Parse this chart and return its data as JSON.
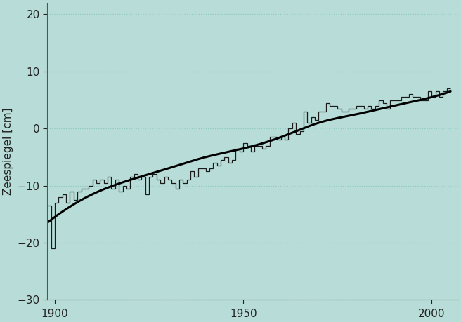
{
  "title": "",
  "ylabel": "Zeespiegel [cm]",
  "xlabel": "",
  "xlim": [
    1898,
    2007
  ],
  "ylim": [
    -30,
    22
  ],
  "yticks": [
    -30,
    -20,
    -10,
    0,
    10,
    20
  ],
  "xticks": [
    1900,
    1950,
    2000
  ],
  "background_color": "#b8ddd8",
  "plot_bg_color": "#b8ddd8",
  "grid_color": "#8ec9c0",
  "step_color": "#1a1a1a",
  "trend_color": "#000000",
  "trend_lw": 2.2,
  "step_lw": 0.9,
  "annual_values": [
    -13.5,
    -21.0,
    -13.0,
    -12.0,
    -11.5,
    -13.0,
    -11.0,
    -12.5,
    -11.0,
    -10.5,
    -10.5,
    -10.0,
    -9.0,
    -9.5,
    -9.0,
    -9.5,
    -8.5,
    -10.5,
    -9.0,
    -11.0,
    -10.0,
    -10.5,
    -8.5,
    -8.0,
    -9.0,
    -8.5,
    -11.5,
    -8.5,
    -8.0,
    -9.0,
    -9.5,
    -8.5,
    -9.0,
    -9.5,
    -10.5,
    -9.0,
    -9.5,
    -9.0,
    -7.5,
    -8.5,
    -7.0,
    -7.0,
    -7.5,
    -7.0,
    -6.0,
    -6.5,
    -5.5,
    -5.0,
    -6.0,
    -5.5,
    -3.5,
    -4.0,
    -2.5,
    -3.0,
    -4.0,
    -3.0,
    -3.0,
    -3.5,
    -3.0,
    -1.5,
    -1.5,
    -2.0,
    -1.5,
    -2.0,
    0.0,
    1.0,
    -1.0,
    -0.5,
    3.0,
    1.0,
    2.0,
    1.5,
    3.0,
    3.0,
    4.5,
    4.0,
    4.0,
    3.5,
    3.0,
    3.0,
    3.5,
    3.5,
    4.0,
    4.0,
    3.5,
    4.0,
    3.5,
    4.0,
    5.0,
    4.5,
    3.5,
    5.0,
    5.0,
    5.0,
    5.5,
    5.5,
    6.0,
    5.5,
    5.5,
    5.0,
    5.0,
    6.5,
    5.5,
    6.5,
    5.5,
    6.5,
    7.0
  ],
  "years_start": 1898,
  "trend_points_x": [
    1898,
    1900,
    1910,
    1920,
    1930,
    1940,
    1950,
    1960,
    1970,
    1980,
    1990,
    2000,
    2005
  ],
  "trend_points_y": [
    -16.5,
    -15.5,
    -11.5,
    -9.0,
    -7.0,
    -5.0,
    -3.5,
    -1.5,
    1.0,
    2.5,
    4.0,
    5.5,
    6.5
  ]
}
